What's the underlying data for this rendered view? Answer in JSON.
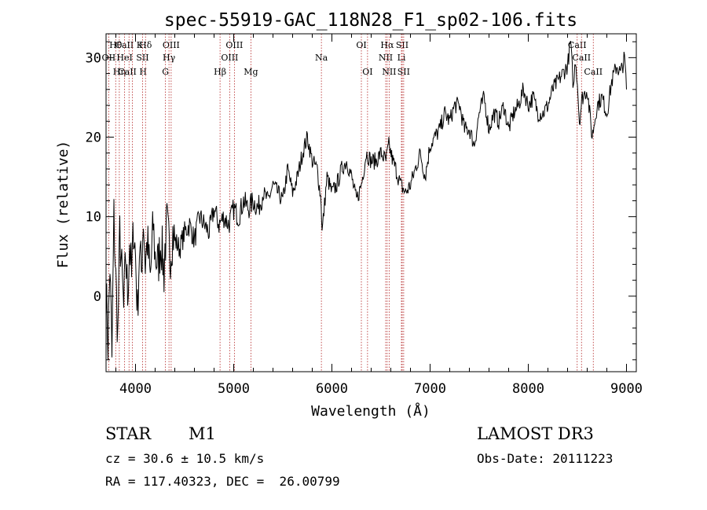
{
  "chart_data": {
    "type": "line",
    "title": "spec-55919-GAC_118N28_F1_sp02-106.fits",
    "xlabel": "Wavelength (Å)",
    "ylabel": "Flux (relative)",
    "xlim": [
      3700,
      9100
    ],
    "ylim": [
      -9.5,
      33
    ],
    "xticks": [
      4000,
      5000,
      6000,
      7000,
      8000,
      9000
    ],
    "xtick_labels": [
      "4000",
      "5000",
      "6000",
      "7000",
      "8000",
      "9000"
    ],
    "yticks": [
      0,
      10,
      20,
      30
    ],
    "ytick_labels": [
      "0",
      "10",
      "20",
      "30"
    ],
    "series": [
      {
        "name": "flux",
        "x": [
          3700,
          3720,
          3740,
          3760,
          3780,
          3800,
          3820,
          3840,
          3860,
          3880,
          3900,
          3920,
          3940,
          3960,
          3980,
          4000,
          4020,
          4040,
          4060,
          4080,
          4100,
          4120,
          4150,
          4180,
          4200,
          4230,
          4260,
          4290,
          4300,
          4320,
          4350,
          4380,
          4400,
          4450,
          4500,
          4550,
          4600,
          4650,
          4700,
          4750,
          4800,
          4850,
          4900,
          4950,
          5000,
          5050,
          5100,
          5150,
          5200,
          5250,
          5300,
          5350,
          5400,
          5450,
          5500,
          5550,
          5600,
          5650,
          5700,
          5750,
          5800,
          5850,
          5890,
          5900,
          5950,
          6000,
          6050,
          6100,
          6150,
          6200,
          6250,
          6300,
          6350,
          6400,
          6450,
          6500,
          6550,
          6580,
          6620,
          6650,
          6700,
          6750,
          6800,
          6850,
          6900,
          6950,
          7000,
          7050,
          7100,
          7150,
          7200,
          7250,
          7300,
          7350,
          7400,
          7450,
          7500,
          7550,
          7600,
          7650,
          7700,
          7750,
          7800,
          7850,
          7900,
          7950,
          8000,
          8050,
          8100,
          8150,
          8200,
          8250,
          8300,
          8350,
          8400,
          8430,
          8460,
          8480,
          8500,
          8520,
          8550,
          8600,
          8650,
          8700,
          8750,
          8800,
          8850,
          8900,
          8940,
          8980,
          9000
        ],
        "y": [
          1,
          -6,
          4,
          -8,
          10,
          2,
          -5,
          8,
          3,
          -2,
          5,
          0,
          7,
          2,
          9,
          5,
          -2,
          6,
          3,
          10,
          4,
          7,
          2,
          9,
          5,
          4,
          7,
          3,
          6,
          9,
          5,
          8,
          7,
          6,
          8,
          9,
          7,
          10,
          9,
          8,
          11,
          9,
          10,
          9,
          11,
          10,
          12,
          11,
          12,
          11,
          13,
          12,
          14,
          13,
          12,
          16,
          13,
          15,
          18,
          20,
          17,
          16,
          12,
          8,
          15,
          13,
          14,
          16,
          17,
          15,
          12,
          14,
          18,
          17,
          17,
          18,
          17,
          19,
          17,
          16,
          14,
          13,
          14,
          16,
          18,
          15,
          19,
          20,
          21,
          23,
          22,
          24,
          24,
          21,
          21,
          19,
          23,
          25,
          21,
          23,
          22,
          24,
          21,
          23,
          24,
          26,
          24,
          25,
          23,
          23,
          24,
          26,
          27,
          28,
          29,
          32,
          26,
          30,
          27,
          22,
          25,
          26,
          20,
          24,
          25,
          23,
          27,
          29,
          28,
          30,
          26
        ]
      }
    ],
    "lines": [
      {
        "name": "Hθ",
        "x": 3798,
        "row": 1
      },
      {
        "name": "OII",
        "x": 3727,
        "row": 2
      },
      {
        "name": "Hη",
        "x": 3835,
        "row": 3
      },
      {
        "name": "CaII K",
        "x": 3934,
        "row": 1
      },
      {
        "name": "HeI",
        "x": 3889,
        "row": 2
      },
      {
        "name": "CaII H",
        "x": 3969,
        "row": 3
      },
      {
        "name": "Hδ",
        "x": 4102,
        "row": 1
      },
      {
        "name": "SII",
        "x": 4072,
        "row": 2
      },
      {
        "name": "OIII",
        "x": 4363,
        "row": 1
      },
      {
        "name": "Hγ",
        "x": 4341,
        "row": 2
      },
      {
        "name": "G",
        "x": 4305,
        "row": 3
      },
      {
        "name": "Hβ",
        "x": 4861,
        "row": 3
      },
      {
        "name": "OIII",
        "x": 4959,
        "row": 2
      },
      {
        "name": "OIII",
        "x": 5007,
        "row": 1
      },
      {
        "name": "Mg",
        "x": 5175,
        "row": 3
      },
      {
        "name": "Na",
        "x": 5893,
        "row": 2
      },
      {
        "name": "OI",
        "x": 6300,
        "row": 1
      },
      {
        "name": "OI",
        "x": 6363,
        "row": 3
      },
      {
        "name": "NII",
        "x": 6548,
        "row": 2
      },
      {
        "name": "Hα",
        "x": 6563,
        "row": 1
      },
      {
        "name": "NII",
        "x": 6583,
        "row": 3
      },
      {
        "name": "Li",
        "x": 6708,
        "row": 2
      },
      {
        "name": "SII",
        "x": 6716,
        "row": 1
      },
      {
        "name": "SII",
        "x": 6731,
        "row": 3
      },
      {
        "name": "CaII",
        "x": 8498,
        "row": 1
      },
      {
        "name": "CaII",
        "x": 8542,
        "row": 2
      },
      {
        "name": "CaII",
        "x": 8662,
        "row": 3
      }
    ]
  },
  "info": {
    "class": "STAR",
    "subclass": "M1",
    "survey": "LAMOST DR3",
    "cz": "cz = 30.6 ± 10.5 km/s",
    "obs_date": "Obs-Date: 20111223",
    "coords": "RA = 117.40323, DEC =  26.00799"
  }
}
